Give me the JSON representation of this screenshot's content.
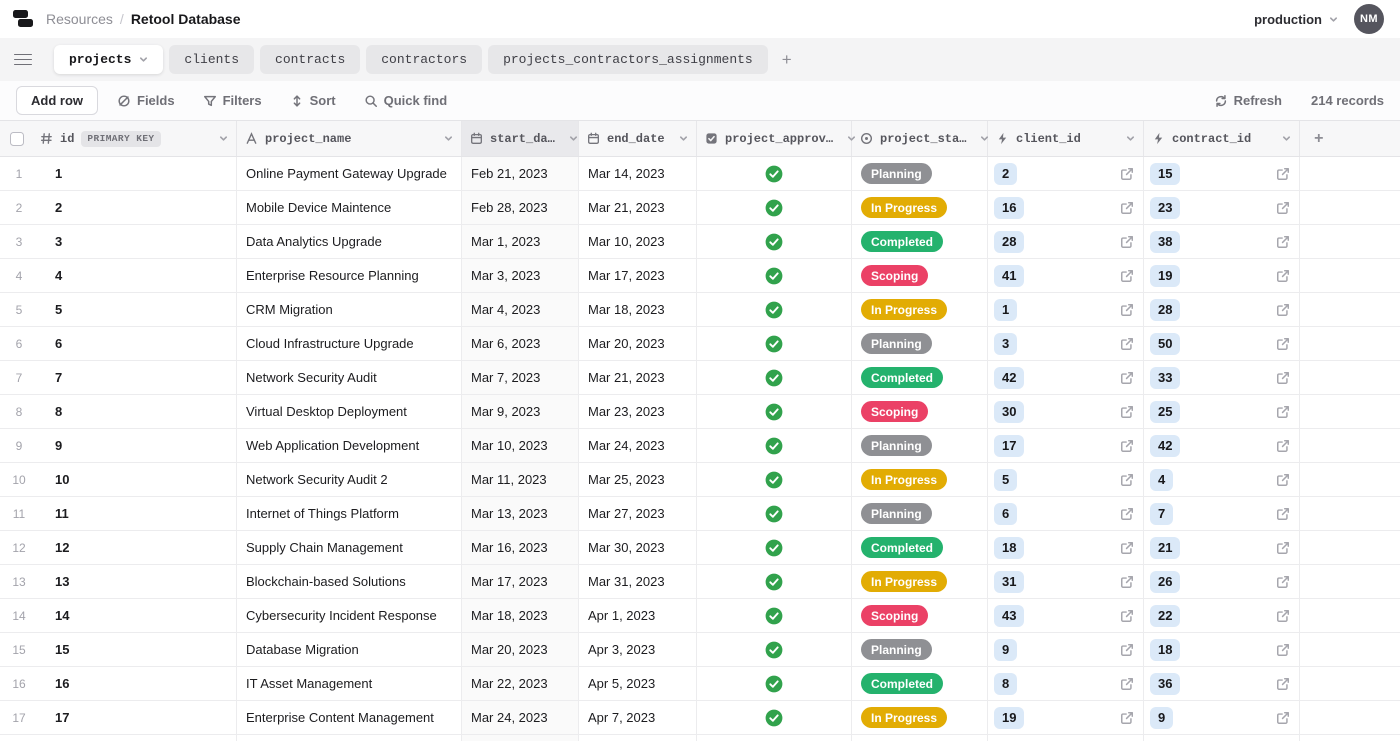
{
  "topbar": {
    "breadcrumb_root": "Resources",
    "breadcrumb_sep": "/",
    "title": "Retool Database",
    "env_label": "production",
    "avatar_initials": "NM"
  },
  "tabs": [
    {
      "label": "projects",
      "active": true
    },
    {
      "label": "clients",
      "active": false
    },
    {
      "label": "contracts",
      "active": false
    },
    {
      "label": "contractors",
      "active": false
    },
    {
      "label": "projects_contractors_assignments",
      "active": false
    }
  ],
  "toolbar": {
    "add_row": "Add row",
    "fields": "Fields",
    "filters": "Filters",
    "sort": "Sort",
    "quick_find": "Quick find",
    "refresh": "Refresh",
    "records": "214 records"
  },
  "table": {
    "columns": [
      {
        "key": "id",
        "label": "id",
        "badge": "PRIMARY KEY"
      },
      {
        "key": "project_name",
        "label": "project_name"
      },
      {
        "key": "start_date",
        "label": "start_da…"
      },
      {
        "key": "end_date",
        "label": "end_date"
      },
      {
        "key": "project_approval",
        "label": "project_approv…"
      },
      {
        "key": "project_status",
        "label": "project_sta…"
      },
      {
        "key": "client_id",
        "label": "client_id"
      },
      {
        "key": "contract_id",
        "label": "contract_id"
      }
    ],
    "rows": [
      {
        "id": "1",
        "project_name": "Online Payment Gateway Upgrade",
        "start_date": "Feb 21, 2023",
        "end_date": "Mar 14, 2023",
        "approved": true,
        "status": "Planning",
        "client_id": "2",
        "contract_id": "15"
      },
      {
        "id": "2",
        "project_name": "Mobile Device Maintence",
        "start_date": "Feb 28, 2023",
        "end_date": "Mar 21, 2023",
        "approved": true,
        "status": "In Progress",
        "client_id": "16",
        "contract_id": "23"
      },
      {
        "id": "3",
        "project_name": "Data Analytics Upgrade",
        "start_date": "Mar 1, 2023",
        "end_date": "Mar 10, 2023",
        "approved": true,
        "status": "Completed",
        "client_id": "28",
        "contract_id": "38"
      },
      {
        "id": "4",
        "project_name": "Enterprise Resource Planning",
        "start_date": "Mar 3, 2023",
        "end_date": "Mar 17, 2023",
        "approved": true,
        "status": "Scoping",
        "client_id": "41",
        "contract_id": "19"
      },
      {
        "id": "5",
        "project_name": "CRM Migration",
        "start_date": "Mar 4, 2023",
        "end_date": "Mar 18, 2023",
        "approved": true,
        "status": "In Progress",
        "client_id": "1",
        "contract_id": "28"
      },
      {
        "id": "6",
        "project_name": "Cloud Infrastructure Upgrade",
        "start_date": "Mar 6, 2023",
        "end_date": "Mar 20, 2023",
        "approved": true,
        "status": "Planning",
        "client_id": "3",
        "contract_id": "50"
      },
      {
        "id": "7",
        "project_name": "Network Security Audit",
        "start_date": "Mar 7, 2023",
        "end_date": "Mar 21, 2023",
        "approved": true,
        "status": "Completed",
        "client_id": "42",
        "contract_id": "33"
      },
      {
        "id": "8",
        "project_name": "Virtual Desktop Deployment",
        "start_date": "Mar 9, 2023",
        "end_date": "Mar 23, 2023",
        "approved": true,
        "status": "Scoping",
        "client_id": "30",
        "contract_id": "25"
      },
      {
        "id": "9",
        "project_name": "Web Application Development",
        "start_date": "Mar 10, 2023",
        "end_date": "Mar 24, 2023",
        "approved": true,
        "status": "Planning",
        "client_id": "17",
        "contract_id": "42"
      },
      {
        "id": "10",
        "project_name": "Network Security Audit 2",
        "start_date": "Mar 11, 2023",
        "end_date": "Mar 25, 2023",
        "approved": true,
        "status": "In Progress",
        "client_id": "5",
        "contract_id": "4"
      },
      {
        "id": "11",
        "project_name": "Internet of Things Platform",
        "start_date": "Mar 13, 2023",
        "end_date": "Mar 27, 2023",
        "approved": true,
        "status": "Planning",
        "client_id": "6",
        "contract_id": "7"
      },
      {
        "id": "12",
        "project_name": "Supply Chain Management",
        "start_date": "Mar 16, 2023",
        "end_date": "Mar 30, 2023",
        "approved": true,
        "status": "Completed",
        "client_id": "18",
        "contract_id": "21"
      },
      {
        "id": "13",
        "project_name": "Blockchain-based Solutions",
        "start_date": "Mar 17, 2023",
        "end_date": "Mar 31, 2023",
        "approved": true,
        "status": "In Progress",
        "client_id": "31",
        "contract_id": "26"
      },
      {
        "id": "14",
        "project_name": "Cybersecurity Incident Response",
        "start_date": "Mar 18, 2023",
        "end_date": "Apr 1, 2023",
        "approved": true,
        "status": "Scoping",
        "client_id": "43",
        "contract_id": "22"
      },
      {
        "id": "15",
        "project_name": "Database Migration",
        "start_date": "Mar 20, 2023",
        "end_date": "Apr 3, 2023",
        "approved": true,
        "status": "Planning",
        "client_id": "9",
        "contract_id": "18"
      },
      {
        "id": "16",
        "project_name": "IT Asset Management",
        "start_date": "Mar 22, 2023",
        "end_date": "Apr 5, 2023",
        "approved": true,
        "status": "Completed",
        "client_id": "8",
        "contract_id": "36"
      },
      {
        "id": "17",
        "project_name": "Enterprise Content Management",
        "start_date": "Mar 24, 2023",
        "end_date": "Apr 7, 2023",
        "approved": true,
        "status": "In Progress",
        "client_id": "19",
        "contract_id": "9"
      }
    ]
  },
  "status_colors": {
    "Planning": "#8f9094",
    "In Progress": "#e2ac04",
    "Completed": "#24b26d",
    "Scoping": "#eb4166"
  },
  "colors": {
    "approval_check": "#31a24c",
    "chip_bg": "#dbe9f8",
    "env_dot": "#4285f4"
  }
}
